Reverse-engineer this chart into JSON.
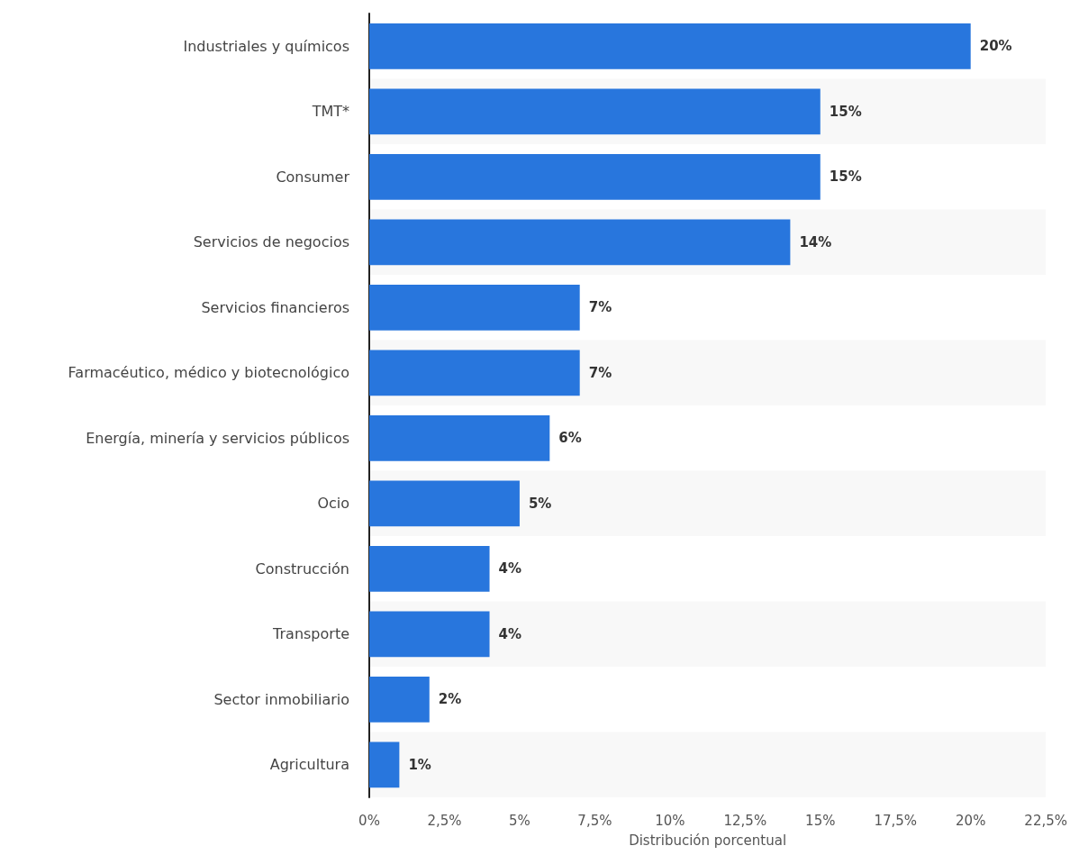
{
  "chart_data": {
    "type": "bar",
    "orientation": "horizontal",
    "categories": [
      "Industriales y químicos",
      "TMT*",
      "Consumer",
      "Servicios de negocios",
      "Servicios financieros",
      "Farmacéutico, médico y biotecnológico",
      "Energía, minería y servicios públicos",
      "Ocio",
      "Construcción",
      "Transporte",
      "Sector inmobiliario",
      "Agricultura"
    ],
    "values": [
      20,
      15,
      15,
      14,
      7,
      7,
      6,
      5,
      4,
      4,
      2,
      1
    ],
    "value_labels": [
      "20%",
      "15%",
      "15%",
      "14%",
      "7%",
      "7%",
      "6%",
      "5%",
      "4%",
      "4%",
      "2%",
      "1%"
    ],
    "color": "#2876dd",
    "xlabel": "Distribución porcentual",
    "xlim": [
      0,
      22.5
    ],
    "xticks": [
      {
        "value": 0,
        "label": "0%"
      },
      {
        "value": 2.5,
        "label": "2,5%"
      },
      {
        "value": 5,
        "label": "5%"
      },
      {
        "value": 7.5,
        "label": "7,5%"
      },
      {
        "value": 10,
        "label": "10%"
      },
      {
        "value": 12.5,
        "label": "12,5%"
      },
      {
        "value": 15,
        "label": "15%"
      },
      {
        "value": 17.5,
        "label": "17,5%"
      },
      {
        "value": 20,
        "label": "20%"
      },
      {
        "value": 22.5,
        "label": "22,5%"
      }
    ],
    "grid": false
  }
}
